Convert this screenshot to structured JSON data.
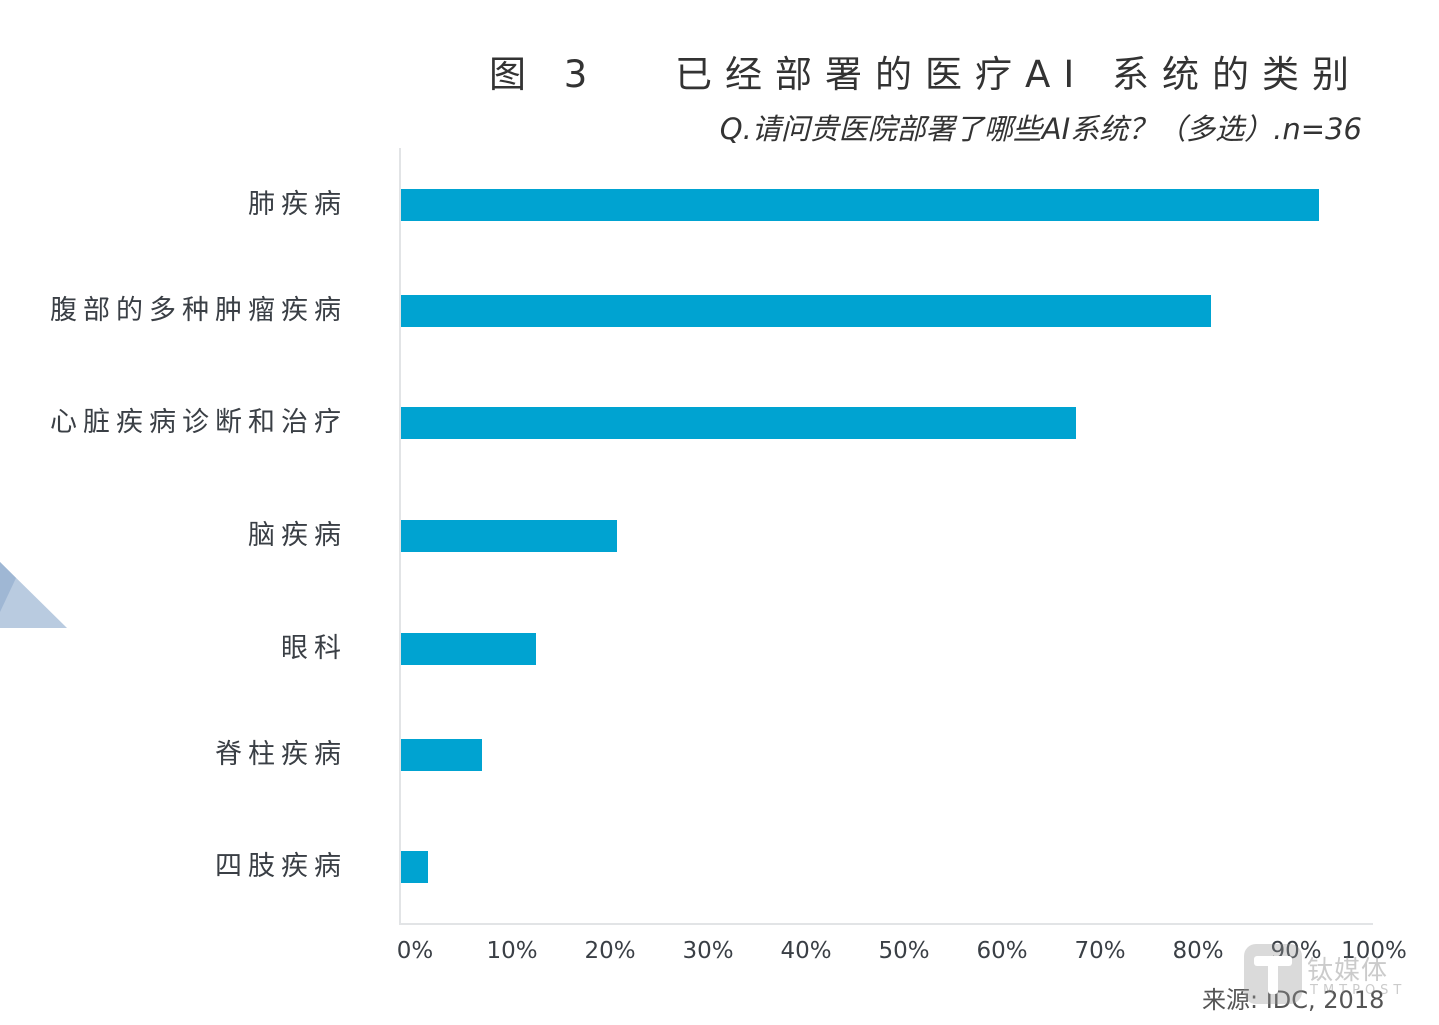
{
  "header": {
    "title": "图 3　 已经部署的医疗AI 系统的类别",
    "subtitle": "Q.请问贵医院部署了哪些AI系统？（多选）.n=36"
  },
  "footer": {
    "source": "来源: IDC, 2018",
    "watermark_name": "钛媒体",
    "watermark_sub": "TMTPOST"
  },
  "colors": {
    "bar": "#00a3d1",
    "axis": "#e2e4e6",
    "text": "#3a3f45"
  },
  "axis": {
    "ticks": [
      "0%",
      "10%",
      "20%",
      "30%",
      "40%",
      "50%",
      "60%",
      "70%",
      "80%",
      "90%",
      "100%"
    ]
  },
  "categories": [
    "肺疾病",
    "腹部的多种肿瘤疾病",
    "心脏疾病诊断和治疗",
    "脑疾病",
    "眼科",
    "脊柱疾病",
    "四肢疾病"
  ],
  "chart_data": {
    "type": "bar",
    "orientation": "horizontal",
    "title": "图 3 已经部署的医疗AI 系统的类别",
    "subtitle": "Q.请问贵医院部署了哪些AI系统？（多选）.n=36",
    "categories": [
      "肺疾病",
      "腹部的多种肿瘤疾病",
      "心脏疾病诊断和治疗",
      "脑疾病",
      "眼科",
      "脊柱疾病",
      "四肢疾病"
    ],
    "values": [
      94.4,
      83.3,
      69.4,
      22.2,
      13.9,
      8.3,
      2.8
    ],
    "unit": "%",
    "xlabel": "",
    "ylabel": "",
    "xlim": [
      0,
      100
    ],
    "x_ticks": [
      "0%",
      "10%",
      "20%",
      "30%",
      "40%",
      "50%",
      "60%",
      "70%",
      "80%",
      "90%",
      "100%"
    ],
    "grid": false,
    "legend": null,
    "source": "来源: IDC, 2018"
  }
}
